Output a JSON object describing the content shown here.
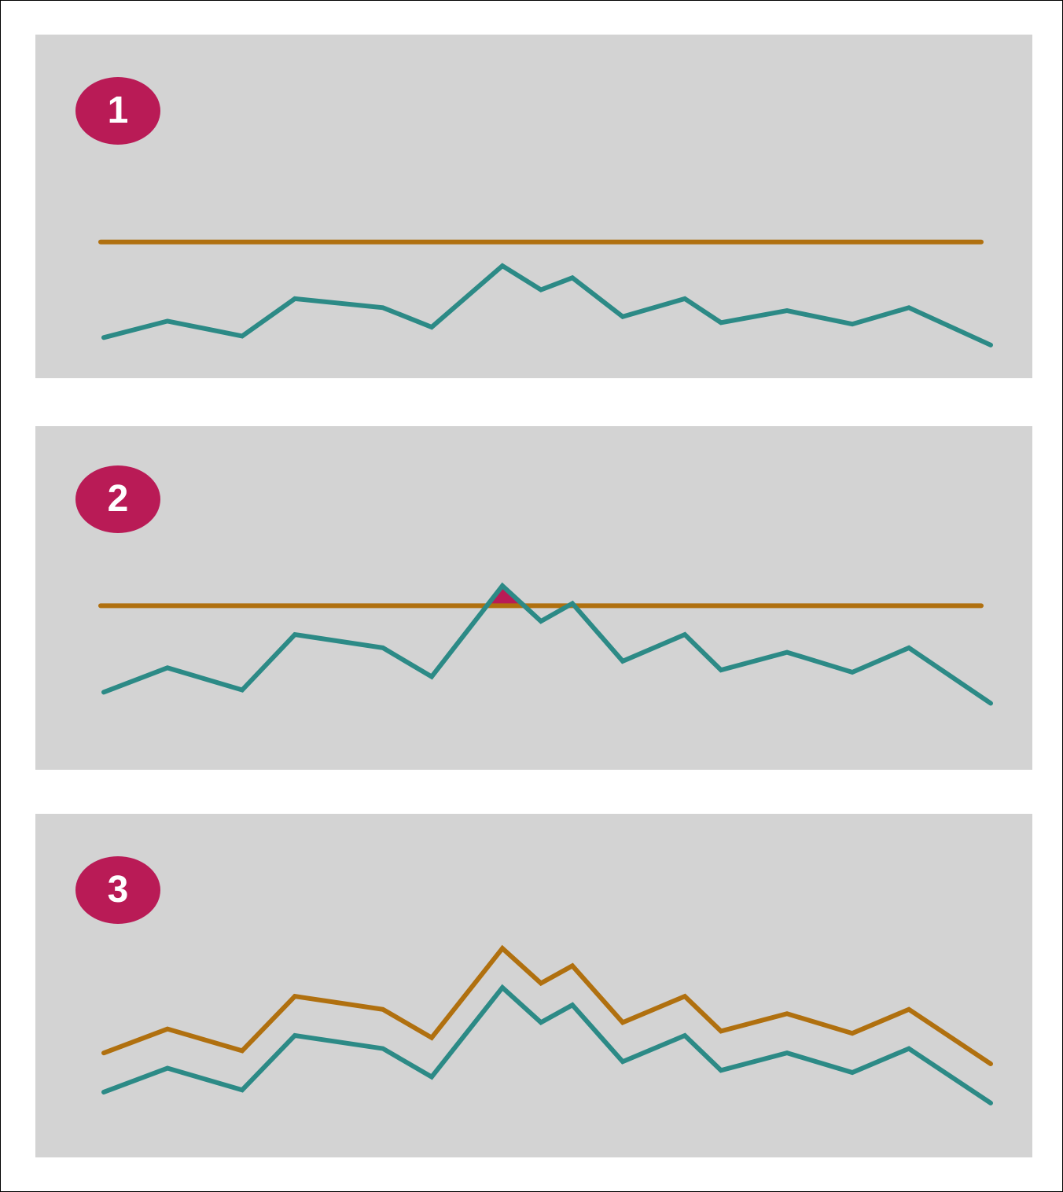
{
  "colors": {
    "panel_background": "#d3d3d3",
    "badge": "#b91b56",
    "badge_text": "#ffffff",
    "series_line": "#2c8a86",
    "threshold_line": "#b0700f",
    "exceedance_fill": "#b91b56"
  },
  "panels": [
    {
      "badge_label": "1",
      "mode": "fixed-threshold-below"
    },
    {
      "badge_label": "2",
      "mode": "fixed-threshold-exceeded"
    },
    {
      "badge_label": "3",
      "mode": "dynamic-threshold"
    }
  ],
  "series_values": [
    13,
    24,
    14,
    39,
    33,
    20,
    61,
    45,
    53,
    27,
    39,
    23,
    31,
    22,
    33,
    8
  ],
  "threshold_values": {
    "panel_1": 77,
    "panel_2": 52,
    "panel_3_offset": 18
  }
}
